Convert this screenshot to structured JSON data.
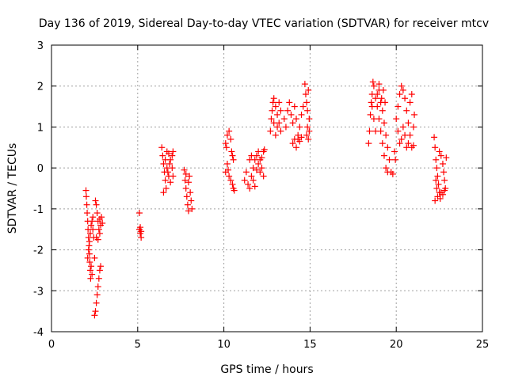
{
  "chart_data": {
    "type": "scatter",
    "title": "Day 136 of 2019, Sidereal Day-to-day VTEC variation (SDTVAR) for receiver mtcv",
    "xlabel": "GPS time / hours",
    "ylabel": "SDTVAR / TECUs",
    "xlim": [
      0,
      25
    ],
    "ylim": [
      -4,
      3
    ],
    "xticks": [
      "0",
      "5",
      "10",
      "15",
      "20",
      "25"
    ],
    "yticks": [
      "-4",
      "-3",
      "-2",
      "-1",
      "0",
      "1",
      "2",
      "3"
    ],
    "grid": true,
    "marker": "plus",
    "color": "#ff0000",
    "series": [
      {
        "name": "SDTVAR",
        "points": [
          [
            2.0,
            -0.55
          ],
          [
            2.02,
            -0.7
          ],
          [
            2.05,
            -0.9
          ],
          [
            2.07,
            -1.1
          ],
          [
            2.1,
            -1.3
          ],
          [
            2.12,
            -1.5
          ],
          [
            2.15,
            -1.7
          ],
          [
            2.18,
            -1.9
          ],
          [
            2.2,
            -2.1
          ],
          [
            2.22,
            -2.3
          ],
          [
            2.25,
            -2.5
          ],
          [
            2.27,
            -2.7
          ],
          [
            2.1,
            -2.2
          ],
          [
            2.15,
            -2.0
          ],
          [
            2.2,
            -1.8
          ],
          [
            2.25,
            -1.6
          ],
          [
            2.3,
            -1.4
          ],
          [
            2.35,
            -1.3
          ],
          [
            2.4,
            -1.5
          ],
          [
            2.45,
            -1.7
          ],
          [
            2.5,
            -2.2
          ],
          [
            2.3,
            -2.4
          ],
          [
            2.35,
            -2.6
          ],
          [
            2.4,
            -1.2
          ],
          [
            2.55,
            -0.8
          ],
          [
            2.6,
            -0.9
          ],
          [
            2.65,
            -1.1
          ],
          [
            2.7,
            -1.3
          ],
          [
            2.75,
            -1.5
          ],
          [
            2.8,
            -1.6
          ],
          [
            2.85,
            -1.4
          ],
          [
            2.9,
            -1.2
          ],
          [
            2.6,
            -1.7
          ],
          [
            2.7,
            -1.75
          ],
          [
            2.8,
            -1.25
          ],
          [
            2.95,
            -1.35
          ],
          [
            2.5,
            -3.6
          ],
          [
            2.55,
            -3.5
          ],
          [
            2.6,
            -3.3
          ],
          [
            2.65,
            -3.1
          ],
          [
            2.7,
            -2.9
          ],
          [
            2.75,
            -2.7
          ],
          [
            2.8,
            -2.5
          ],
          [
            2.85,
            -2.4
          ],
          [
            5.1,
            -1.1
          ],
          [
            5.1,
            -1.5
          ],
          [
            5.15,
            -1.6
          ],
          [
            5.2,
            -1.7
          ],
          [
            5.15,
            -1.45
          ],
          [
            5.2,
            -1.55
          ],
          [
            6.4,
            0.5
          ],
          [
            6.45,
            0.3
          ],
          [
            6.5,
            0.1
          ],
          [
            6.55,
            -0.1
          ],
          [
            6.6,
            -0.3
          ],
          [
            6.65,
            -0.5
          ],
          [
            6.5,
            -0.6
          ],
          [
            6.7,
            0.4
          ],
          [
            6.8,
            0.35
          ],
          [
            6.9,
            0.2
          ],
          [
            7.0,
            0.0
          ],
          [
            7.05,
            -0.2
          ],
          [
            6.6,
            0.2
          ],
          [
            6.7,
            0.0
          ],
          [
            6.8,
            -0.2
          ],
          [
            6.9,
            -0.35
          ],
          [
            7.0,
            0.3
          ],
          [
            7.05,
            0.4
          ],
          [
            6.75,
            -0.1
          ],
          [
            6.85,
            0.1
          ],
          [
            7.7,
            -0.05
          ],
          [
            7.75,
            -0.3
          ],
          [
            7.8,
            -0.5
          ],
          [
            7.85,
            -0.7
          ],
          [
            7.9,
            -0.9
          ],
          [
            7.95,
            -1.05
          ],
          [
            8.0,
            -0.2
          ],
          [
            8.05,
            -0.6
          ],
          [
            8.1,
            -0.8
          ],
          [
            8.15,
            -1.0
          ],
          [
            7.8,
            -0.15
          ],
          [
            7.95,
            -0.35
          ],
          [
            10.1,
            0.6
          ],
          [
            10.15,
            0.5
          ],
          [
            10.2,
            0.8
          ],
          [
            10.3,
            0.9
          ],
          [
            10.4,
            0.7
          ],
          [
            10.45,
            0.4
          ],
          [
            10.5,
            0.3
          ],
          [
            10.55,
            0.2
          ],
          [
            10.1,
            -0.1
          ],
          [
            10.2,
            0.1
          ],
          [
            10.25,
            -0.05
          ],
          [
            10.3,
            -0.2
          ],
          [
            10.4,
            -0.3
          ],
          [
            10.5,
            -0.4
          ],
          [
            10.55,
            -0.5
          ],
          [
            10.6,
            -0.55
          ],
          [
            11.2,
            -0.3
          ],
          [
            11.3,
            -0.1
          ],
          [
            11.4,
            -0.4
          ],
          [
            11.5,
            -0.5
          ],
          [
            11.6,
            -0.2
          ],
          [
            11.7,
            0.0
          ],
          [
            11.8,
            0.2
          ],
          [
            11.9,
            0.3
          ],
          [
            12.0,
            0.4
          ],
          [
            12.1,
            0.2
          ],
          [
            12.2,
            0.0
          ],
          [
            12.3,
            -0.2
          ],
          [
            11.5,
            0.2
          ],
          [
            11.6,
            0.3
          ],
          [
            11.7,
            -0.3
          ],
          [
            11.8,
            -0.45
          ],
          [
            11.9,
            -0.05
          ],
          [
            12.0,
            0.1
          ],
          [
            12.1,
            -0.1
          ],
          [
            12.2,
            0.25
          ],
          [
            12.3,
            0.4
          ],
          [
            12.35,
            0.45
          ],
          [
            12.7,
            0.9
          ],
          [
            12.75,
            1.2
          ],
          [
            12.8,
            1.4
          ],
          [
            12.85,
            1.6
          ],
          [
            12.9,
            1.7
          ],
          [
            13.0,
            1.5
          ],
          [
            13.1,
            1.3
          ],
          [
            13.2,
            1.1
          ],
          [
            13.3,
            0.9
          ],
          [
            12.9,
            1.1
          ],
          [
            13.0,
            0.8
          ],
          [
            13.1,
            1.0
          ],
          [
            13.2,
            1.6
          ],
          [
            13.3,
            1.4
          ],
          [
            13.5,
            1.2
          ],
          [
            13.6,
            1.0
          ],
          [
            13.7,
            1.4
          ],
          [
            13.8,
            1.6
          ],
          [
            13.9,
            1.3
          ],
          [
            14.0,
            1.1
          ],
          [
            14.1,
            1.5
          ],
          [
            14.2,
            1.2
          ],
          [
            14.3,
            0.7
          ],
          [
            14.4,
            1.0
          ],
          [
            14.5,
            1.3
          ],
          [
            14.6,
            1.5
          ],
          [
            14.0,
            0.6
          ],
          [
            14.1,
            0.7
          ],
          [
            14.2,
            0.5
          ],
          [
            14.3,
            0.8
          ],
          [
            14.4,
            0.65
          ],
          [
            14.5,
            0.75
          ],
          [
            14.7,
            2.05
          ],
          [
            14.75,
            1.8
          ],
          [
            14.8,
            1.6
          ],
          [
            14.85,
            1.4
          ],
          [
            14.9,
            1.9
          ],
          [
            14.95,
            1.2
          ],
          [
            14.8,
            0.8
          ],
          [
            14.9,
            0.7
          ],
          [
            14.95,
            0.9
          ],
          [
            14.85,
            1.0
          ],
          [
            18.4,
            0.6
          ],
          [
            18.45,
            0.9
          ],
          [
            18.5,
            1.3
          ],
          [
            18.55,
            1.6
          ],
          [
            18.6,
            1.8
          ],
          [
            18.65,
            2.1
          ],
          [
            18.7,
            2.0
          ],
          [
            18.8,
            1.7
          ],
          [
            18.9,
            1.5
          ],
          [
            19.0,
            1.2
          ],
          [
            19.1,
            0.9
          ],
          [
            19.2,
            0.6
          ],
          [
            19.3,
            0.3
          ],
          [
            19.4,
            0.0
          ],
          [
            19.5,
            -0.1
          ],
          [
            19.0,
            1.9
          ],
          [
            19.1,
            1.6
          ],
          [
            19.2,
            1.4
          ],
          [
            19.3,
            1.1
          ],
          [
            19.4,
            0.8
          ],
          [
            19.5,
            0.5
          ],
          [
            19.6,
            0.2
          ],
          [
            19.7,
            -0.1
          ],
          [
            19.8,
            -0.15
          ],
          [
            18.6,
            1.5
          ],
          [
            18.7,
            1.2
          ],
          [
            18.8,
            0.9
          ],
          [
            18.9,
            1.8
          ],
          [
            19.0,
            2.05
          ],
          [
            19.15,
            1.7
          ],
          [
            19.25,
            1.9
          ],
          [
            19.35,
            1.6
          ],
          [
            20.0,
            1.2
          ],
          [
            20.1,
            1.5
          ],
          [
            20.2,
            1.8
          ],
          [
            20.3,
            2.0
          ],
          [
            20.4,
            1.9
          ],
          [
            20.5,
            1.7
          ],
          [
            20.6,
            1.4
          ],
          [
            20.7,
            1.1
          ],
          [
            20.8,
            0.8
          ],
          [
            20.9,
            0.5
          ],
          [
            21.0,
            1.0
          ],
          [
            21.05,
            1.3
          ],
          [
            20.1,
            0.9
          ],
          [
            20.2,
            0.6
          ],
          [
            20.3,
            0.7
          ],
          [
            20.4,
            1.0
          ],
          [
            20.5,
            0.8
          ],
          [
            20.6,
            0.5
          ],
          [
            20.7,
            0.6
          ],
          [
            20.8,
            1.6
          ],
          [
            20.9,
            1.8
          ],
          [
            21.0,
            0.55
          ],
          [
            19.9,
            0.4
          ],
          [
            19.95,
            0.2
          ],
          [
            22.2,
            0.75
          ],
          [
            22.25,
            0.5
          ],
          [
            22.3,
            0.2
          ],
          [
            22.35,
            0.0
          ],
          [
            22.4,
            -0.2
          ],
          [
            22.45,
            -0.4
          ],
          [
            22.5,
            -0.6
          ],
          [
            22.55,
            -0.75
          ],
          [
            22.3,
            -0.3
          ],
          [
            22.35,
            -0.5
          ],
          [
            22.4,
            -0.7
          ],
          [
            22.5,
            0.4
          ],
          [
            22.6,
            0.3
          ],
          [
            22.7,
            0.1
          ],
          [
            22.75,
            -0.1
          ],
          [
            22.8,
            -0.3
          ],
          [
            22.85,
            -0.5
          ],
          [
            22.9,
            0.25
          ],
          [
            22.6,
            -0.6
          ],
          [
            22.7,
            -0.65
          ],
          [
            22.8,
            -0.55
          ],
          [
            22.25,
            -0.8
          ]
        ]
      }
    ]
  }
}
